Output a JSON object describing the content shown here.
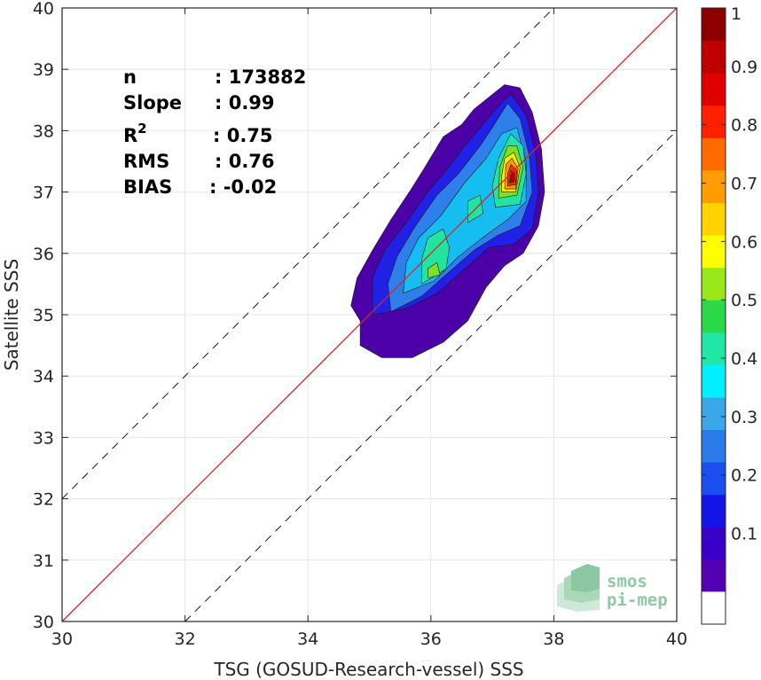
{
  "chart_data": {
    "type": "heatmap",
    "xlabel": "TSG (GOSUD-Research-vessel) SSS",
    "ylabel": "Satellite SSS",
    "xlim": [
      30,
      40
    ],
    "ylim": [
      30,
      40
    ],
    "x_ticks": [
      "30",
      "32",
      "34",
      "36",
      "38",
      "40"
    ],
    "y_ticks": [
      "30",
      "31",
      "32",
      "33",
      "34",
      "35",
      "36",
      "37",
      "38",
      "39",
      "40"
    ],
    "grid": true,
    "reference_lines": [
      {
        "kind": "identity",
        "slope": 1,
        "offset": 0,
        "color": "#d62728",
        "style": "solid"
      },
      {
        "kind": "offset",
        "slope": 1,
        "offset": 2,
        "color": "#000000",
        "style": "dashed"
      },
      {
        "kind": "offset",
        "slope": 1,
        "offset": -2,
        "color": "#000000",
        "style": "dashed"
      }
    ],
    "stats": [
      {
        "label": "n",
        "value": ": 173882"
      },
      {
        "label": "Slope",
        "value": ": 0.99"
      },
      {
        "label": "R",
        "superscript": "2",
        "value": ": 0.75"
      },
      {
        "label": "RMS",
        "value": ": 0.76"
      },
      {
        "label": "BIAS",
        "value": ": -0.02"
      }
    ],
    "density_contours": [
      {
        "level": 0.05,
        "color": "#4b00a8",
        "points": [
          [
            34.85,
            34.5
          ],
          [
            35.2,
            34.3
          ],
          [
            35.7,
            34.3
          ],
          [
            36.2,
            34.55
          ],
          [
            36.6,
            34.9
          ],
          [
            36.9,
            35.45
          ],
          [
            37.2,
            35.8
          ],
          [
            37.5,
            36.0
          ],
          [
            37.75,
            36.45
          ],
          [
            37.85,
            37.0
          ],
          [
            37.8,
            37.7
          ],
          [
            37.65,
            38.3
          ],
          [
            37.45,
            38.7
          ],
          [
            37.2,
            38.75
          ],
          [
            36.95,
            38.55
          ],
          [
            36.7,
            38.35
          ],
          [
            36.5,
            38.1
          ],
          [
            36.2,
            37.9
          ],
          [
            35.9,
            37.4
          ],
          [
            35.65,
            37.0
          ],
          [
            35.35,
            36.55
          ],
          [
            35.05,
            36.05
          ],
          [
            34.8,
            35.6
          ],
          [
            34.7,
            35.15
          ],
          [
            34.85,
            34.9
          ]
        ]
      },
      {
        "level": 0.15,
        "color": "#2020e6",
        "points": [
          [
            35.05,
            35.0
          ],
          [
            35.6,
            35.1
          ],
          [
            36.1,
            35.35
          ],
          [
            36.55,
            35.75
          ],
          [
            36.95,
            36.1
          ],
          [
            37.35,
            36.15
          ],
          [
            37.65,
            36.4
          ],
          [
            37.75,
            37.0
          ],
          [
            37.7,
            37.65
          ],
          [
            37.55,
            38.25
          ],
          [
            37.3,
            38.6
          ],
          [
            37.05,
            38.35
          ],
          [
            36.85,
            38.1
          ],
          [
            36.55,
            37.75
          ],
          [
            36.25,
            37.35
          ],
          [
            35.95,
            37.0
          ],
          [
            35.6,
            36.5
          ],
          [
            35.25,
            36.05
          ],
          [
            35.05,
            35.6
          ]
        ]
      },
      {
        "level": 0.25,
        "color": "#2f7fea",
        "points": [
          [
            35.35,
            35.05
          ],
          [
            35.85,
            35.3
          ],
          [
            36.3,
            35.7
          ],
          [
            36.7,
            36.05
          ],
          [
            37.1,
            36.3
          ],
          [
            37.45,
            36.45
          ],
          [
            37.65,
            37.0
          ],
          [
            37.6,
            37.6
          ],
          [
            37.45,
            38.2
          ],
          [
            37.25,
            38.45
          ],
          [
            37.0,
            38.05
          ],
          [
            36.8,
            37.75
          ],
          [
            36.45,
            37.3
          ],
          [
            36.1,
            36.95
          ],
          [
            35.75,
            36.45
          ],
          [
            35.45,
            35.95
          ],
          [
            35.3,
            35.5
          ]
        ]
      },
      {
        "level": 0.35,
        "color": "#16bdf0",
        "points": [
          [
            35.55,
            35.35
          ],
          [
            36.05,
            35.55
          ],
          [
            36.45,
            35.95
          ],
          [
            36.9,
            36.3
          ],
          [
            37.25,
            36.55
          ],
          [
            37.55,
            36.85
          ],
          [
            37.55,
            37.5
          ],
          [
            37.4,
            38.05
          ],
          [
            37.15,
            37.95
          ],
          [
            36.9,
            37.55
          ],
          [
            36.55,
            37.15
          ],
          [
            36.15,
            36.6
          ],
          [
            35.8,
            36.25
          ],
          [
            35.6,
            35.85
          ]
        ]
      },
      {
        "level": 0.45,
        "color": "#22e4a0",
        "points": [
          [
            35.85,
            35.5
          ],
          [
            36.25,
            35.75
          ],
          [
            36.3,
            36.1
          ],
          [
            36.2,
            36.4
          ],
          [
            35.95,
            36.25
          ],
          [
            35.85,
            35.9
          ]
        ]
      },
      {
        "level": 0.45,
        "color": "#22e4a0",
        "points": [
          [
            36.6,
            36.5
          ],
          [
            36.85,
            36.65
          ],
          [
            36.8,
            36.95
          ],
          [
            36.6,
            36.85
          ]
        ]
      },
      {
        "level": 0.45,
        "color": "#22e4a0",
        "points": [
          [
            37.05,
            36.75
          ],
          [
            37.45,
            36.8
          ],
          [
            37.55,
            37.3
          ],
          [
            37.5,
            37.75
          ],
          [
            37.3,
            37.95
          ],
          [
            37.1,
            37.55
          ],
          [
            37.0,
            37.1
          ]
        ]
      },
      {
        "level": 0.55,
        "color": "#80e020",
        "points": [
          [
            35.95,
            35.6
          ],
          [
            36.15,
            35.65
          ],
          [
            36.1,
            35.85
          ],
          [
            35.95,
            35.75
          ]
        ]
      },
      {
        "level": 0.55,
        "color": "#80e020",
        "points": [
          [
            37.1,
            36.9
          ],
          [
            37.4,
            36.95
          ],
          [
            37.5,
            37.4
          ],
          [
            37.4,
            37.75
          ],
          [
            37.25,
            37.75
          ],
          [
            37.12,
            37.4
          ]
        ]
      },
      {
        "level": 0.65,
        "color": "#ffe800",
        "points": [
          [
            37.15,
            37.0
          ],
          [
            37.38,
            37.0
          ],
          [
            37.45,
            37.4
          ],
          [
            37.35,
            37.65
          ],
          [
            37.2,
            37.55
          ],
          [
            37.15,
            37.25
          ]
        ]
      },
      {
        "level": 0.75,
        "color": "#ff9a00",
        "points": [
          [
            37.2,
            37.05
          ],
          [
            37.38,
            37.05
          ],
          [
            37.42,
            37.38
          ],
          [
            37.32,
            37.55
          ],
          [
            37.22,
            37.45
          ]
        ]
      },
      {
        "level": 0.85,
        "color": "#ff2a00",
        "points": [
          [
            37.25,
            37.1
          ],
          [
            37.38,
            37.12
          ],
          [
            37.4,
            37.35
          ],
          [
            37.3,
            37.45
          ],
          [
            37.25,
            37.3
          ]
        ]
      },
      {
        "level": 0.95,
        "color": "#b00000",
        "points": [
          [
            37.28,
            37.15
          ],
          [
            37.36,
            37.17
          ],
          [
            37.36,
            37.32
          ],
          [
            37.3,
            37.35
          ]
        ]
      }
    ],
    "colorbar": {
      "range": [
        0,
        1
      ],
      "ticks": [
        "0.1",
        "0.2",
        "0.3",
        "0.4",
        "0.5",
        "0.6",
        "0.7",
        "0.8",
        "0.9",
        "1"
      ],
      "colors": [
        "#5400b4",
        "#3800c8",
        "#1414e6",
        "#1a4ef0",
        "#2a7be8",
        "#3aa8e8",
        "#00f0ff",
        "#20e6a6",
        "#2ad84a",
        "#9ae81a",
        "#ffff00",
        "#ffd200",
        "#ff9c00",
        "#ff6a00",
        "#ff2000",
        "#e00000",
        "#c00000",
        "#8c0000"
      ],
      "blank_bottom": true
    }
  },
  "logo": {
    "line1": "smos",
    "line2": "pi-mep"
  }
}
